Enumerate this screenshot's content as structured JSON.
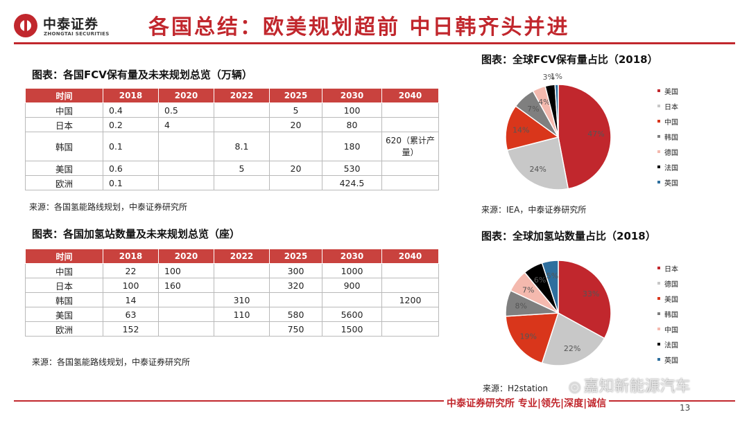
{
  "brand": {
    "name_cn": "中泰证券",
    "name_en": "ZHONGTAI SECURITIES"
  },
  "page_title": "各国总结：欧美规划超前 中日韩齐头并进",
  "fcv_table": {
    "title": "图表：各国FCV保有量及未来规划总览（万辆）",
    "headers": [
      "时间",
      "2018",
      "2020",
      "2022",
      "2025",
      "2030",
      "2040"
    ],
    "rows": [
      [
        "中国",
        "0.4",
        "0.5",
        "",
        "5",
        "100",
        ""
      ],
      [
        "日本",
        "0.2",
        "4",
        "",
        "20",
        "80",
        ""
      ],
      [
        "韩国",
        "0.1",
        "",
        "8.1",
        "",
        "180",
        "620（累计产量）"
      ],
      [
        "美国",
        "0.6",
        "",
        "5",
        "20",
        "530",
        ""
      ],
      [
        "欧洲",
        "0.1",
        "",
        "",
        "",
        "424.5",
        ""
      ]
    ],
    "source": "来源：各国氢能路线规划，中泰证券研究所"
  },
  "station_table": {
    "title": "图表：各国加氢站数量及未来规划总览（座）",
    "headers": [
      "时间",
      "2018",
      "2020",
      "2022",
      "2025",
      "2030",
      "2040"
    ],
    "rows": [
      [
        "中国",
        "22",
        "100",
        "",
        "300",
        "1000",
        ""
      ],
      [
        "日本",
        "100",
        "160",
        "",
        "320",
        "900",
        ""
      ],
      [
        "韩国",
        "14",
        "",
        "310",
        "",
        "",
        "1200"
      ],
      [
        "美国",
        "63",
        "",
        "110",
        "580",
        "5600",
        ""
      ],
      [
        "欧洲",
        "152",
        "",
        "",
        "750",
        "1500",
        ""
      ]
    ],
    "source": "来源：各国氢能路线规划，中泰证券研究所"
  },
  "fcv_pie": {
    "title": "图表：全球FCV保有量占比（2018）",
    "source": "来源：IEA，中泰证券研究所",
    "chart_data": {
      "type": "pie",
      "categories": [
        "美国",
        "日本",
        "中国",
        "韩国",
        "德国",
        "法国",
        "英国"
      ],
      "values": [
        47,
        24,
        14,
        7,
        4,
        3,
        1
      ],
      "labels": [
        "47%",
        "24%",
        "14%",
        "7%",
        "4%",
        "3%",
        "1%"
      ],
      "colors": [
        "#c1272d",
        "#c8c8c8",
        "#d9361b",
        "#7f7f7f",
        "#f4b9ae",
        "#000000",
        "#2e6f9e"
      ]
    }
  },
  "station_pie": {
    "title": "图表：全球加氢站数量占比（2018）",
    "source": "来源：H2station",
    "chart_data": {
      "type": "pie",
      "categories": [
        "日本",
        "德国",
        "美国",
        "韩国",
        "中国",
        "法国",
        "英国"
      ],
      "values": [
        33,
        22,
        19,
        8,
        7,
        6,
        5
      ],
      "labels": [
        "33%",
        "22%",
        "19%",
        "8%",
        "7%",
        "6%",
        "5%"
      ],
      "colors": [
        "#c1272d",
        "#c8c8c8",
        "#d9361b",
        "#7f7f7f",
        "#f4b9ae",
        "#000000",
        "#2e6f9e"
      ]
    }
  },
  "footer": {
    "text": "中泰证券研究所 专业|领先|深度|诚信",
    "page_number": "13",
    "watermark": "嘉知新能源汽车"
  }
}
